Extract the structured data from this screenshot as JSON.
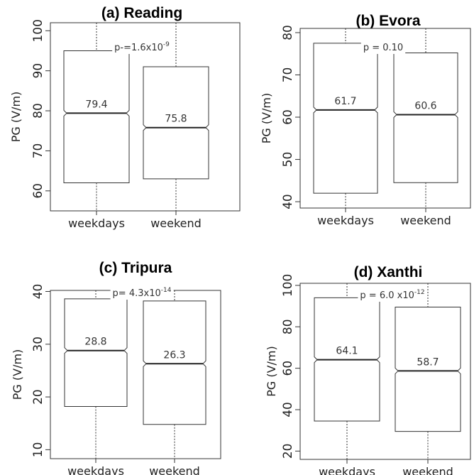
{
  "chart_data": [
    {
      "type": "boxplot",
      "title": "(a) Reading",
      "ylabel": "PG (V/m)",
      "ylim": [
        55,
        102
      ],
      "yticks": [
        60,
        70,
        80,
        90,
        100
      ],
      "categories": [
        "weekdays",
        "weekend"
      ],
      "boxes": [
        {
          "q1": 62,
          "median": 79.4,
          "q3": 95,
          "whisker_low": 51,
          "whisker_high": 103
        },
        {
          "q1": 63,
          "median": 75.8,
          "q3": 91,
          "whisker_low": 51,
          "whisker_high": 103
        }
      ],
      "median_labels": [
        "79.4",
        "75.8"
      ],
      "p_value": {
        "prefix": "p-=1.6x10",
        "exp": "-9",
        "suffix": ""
      }
    },
    {
      "type": "boxplot",
      "title": "(b) Evora",
      "ylabel": "PG (V/m)",
      "ylim": [
        38.5,
        81
      ],
      "yticks": [
        40,
        50,
        60,
        70,
        80
      ],
      "categories": [
        "weekdays",
        "weekend"
      ],
      "boxes": [
        {
          "q1": 42,
          "median": 61.7,
          "q3": 77.5,
          "whisker_low": 37,
          "whisker_high": 82
        },
        {
          "q1": 44.5,
          "median": 60.6,
          "q3": 75.2,
          "whisker_low": 37,
          "whisker_high": 82
        }
      ],
      "median_labels": [
        "61.7",
        "60.6"
      ],
      "p_value": {
        "prefix": "p = 0.10",
        "exp": "",
        "suffix": ""
      }
    },
    {
      "type": "boxplot",
      "title": "(c) Tripura",
      "ylabel": "PG (V/m)",
      "ylim": [
        8.3,
        40.2
      ],
      "yticks": [
        10,
        20,
        30,
        40
      ],
      "categories": [
        "weekdays",
        "weekend"
      ],
      "boxes": [
        {
          "q1": 18.2,
          "median": 28.8,
          "q3": 38.6,
          "whisker_low": 7,
          "whisker_high": 41
        },
        {
          "q1": 14.8,
          "median": 26.3,
          "q3": 38.2,
          "whisker_low": 7,
          "whisker_high": 41
        }
      ],
      "median_labels": [
        "28.8",
        "26.3"
      ],
      "p_value": {
        "prefix": "p= 4.3x10",
        "exp": "-14",
        "suffix": ""
      }
    },
    {
      "type": "boxplot",
      "title": "(d) Xanthi",
      "ylabel": "PG (V/m)",
      "ylim": [
        16,
        101
      ],
      "yticks": [
        20,
        40,
        60,
        80,
        100
      ],
      "categories": [
        "weekdays",
        "weekend"
      ],
      "boxes": [
        {
          "q1": 34.5,
          "median": 64.1,
          "q3": 94,
          "whisker_low": 10,
          "whisker_high": 104
        },
        {
          "q1": 29.5,
          "median": 58.7,
          "q3": 89.5,
          "whisker_low": 10,
          "whisker_high": 104
        }
      ],
      "median_labels": [
        "64.1",
        "58.7"
      ],
      "p_value": {
        "prefix": "p = 6.0 x10",
        "exp": "-12",
        "suffix": ""
      }
    }
  ]
}
